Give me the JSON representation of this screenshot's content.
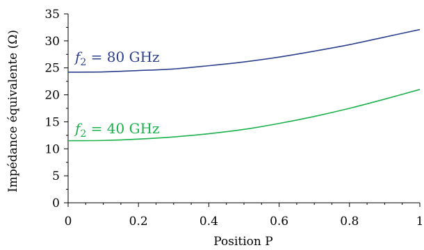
{
  "chart_data": {
    "type": "line",
    "title": "",
    "xlabel": "Position P",
    "ylabel": "Impédance équivalente (Ω)",
    "xlim": [
      0,
      1
    ],
    "ylim": [
      0,
      35
    ],
    "xticks": [
      0,
      0.2,
      0.4,
      0.6,
      0.8,
      1
    ],
    "xtick_labels": [
      "0",
      "0.2",
      "0.4",
      "0.6",
      "0.8",
      "1"
    ],
    "yticks": [
      0,
      5,
      10,
      15,
      20,
      25,
      30,
      35
    ],
    "ytick_labels": [
      "0",
      "5",
      "10",
      "15",
      "20",
      "25",
      "30",
      "35"
    ],
    "grid": false,
    "x": [
      0,
      0.1,
      0.2,
      0.3,
      0.4,
      0.5,
      0.6,
      0.7,
      0.8,
      0.9,
      1.0
    ],
    "series": [
      {
        "label_symbol": "f",
        "label_sub": "2",
        "label_text": " = 80 GHz",
        "color": "#2b3f8c",
        "values": [
          24.2,
          24.25,
          24.5,
          24.8,
          25.4,
          26.1,
          27.0,
          28.1,
          29.3,
          30.7,
          32.1
        ]
      },
      {
        "label_symbol": "f",
        "label_sub": "2",
        "label_text": " = 40 GHz",
        "color": "#1ab04a",
        "values": [
          11.5,
          11.55,
          11.8,
          12.2,
          12.8,
          13.6,
          14.7,
          16.0,
          17.5,
          19.2,
          21.0
        ]
      }
    ]
  }
}
